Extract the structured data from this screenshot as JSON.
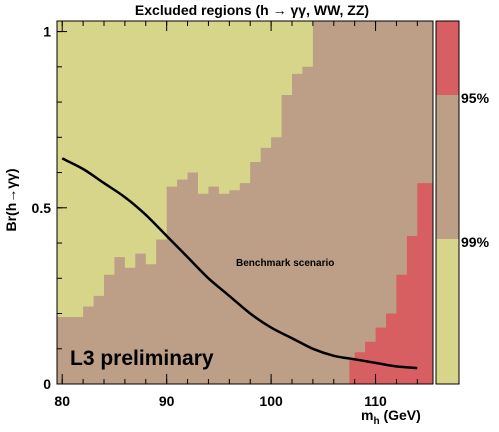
{
  "colors": {
    "excluded_95": "#d75f62",
    "excluded_99": "#bd9e86",
    "allowed": "#d6d58a",
    "curve": "#000000"
  },
  "chart_data": {
    "type": "heatmap",
    "title": "Excluded regions (h → γγ, WW, ZZ)",
    "xlabel": "m",
    "xlabel_sub": "h",
    "xlabel_unit": " (GeV)",
    "ylabel": "Br(h→γγ)",
    "xlim": [
      79.5,
      115.5
    ],
    "ylim": [
      0,
      1.03
    ],
    "x_ticks": [
      {
        "v": 80,
        "label": "80"
      },
      {
        "v": 90,
        "label": "90"
      },
      {
        "v": 100,
        "label": "100"
      },
      {
        "v": 110,
        "label": "110"
      }
    ],
    "y_ticks": [
      {
        "v": 0,
        "label": "0"
      },
      {
        "v": 0.5,
        "label": "0.5"
      },
      {
        "v": 1,
        "label": "1"
      }
    ],
    "grid": false,
    "legend": {
      "position": "right",
      "entries": [
        {
          "label": "95%",
          "color": "#d75f62"
        },
        {
          "label": "99%",
          "color": "#bd9e86"
        },
        {
          "label": "",
          "color": "#d6d58a"
        }
      ]
    },
    "regions": [
      {
        "name": "99% CL excluded",
        "color": "#bd9e86",
        "boundary": [
          [
            80,
            0.19
          ],
          [
            82,
            0.19
          ],
          [
            82,
            0.22
          ],
          [
            83,
            0.22
          ],
          [
            83,
            0.25
          ],
          [
            84,
            0.25
          ],
          [
            84,
            0.31
          ],
          [
            85,
            0.31
          ],
          [
            85,
            0.36
          ],
          [
            86,
            0.36
          ],
          [
            86,
            0.33
          ],
          [
            87,
            0.33
          ],
          [
            87,
            0.37
          ],
          [
            88,
            0.37
          ],
          [
            88,
            0.34
          ],
          [
            89,
            0.34
          ],
          [
            89,
            0.41
          ],
          [
            90,
            0.41
          ],
          [
            90,
            0.56
          ],
          [
            91,
            0.56
          ],
          [
            91,
            0.58
          ],
          [
            92,
            0.58
          ],
          [
            92,
            0.6
          ],
          [
            93,
            0.6
          ],
          [
            93,
            0.54
          ],
          [
            94,
            0.54
          ],
          [
            94,
            0.56
          ],
          [
            95,
            0.56
          ],
          [
            95,
            0.54
          ],
          [
            96,
            0.54
          ],
          [
            96,
            0.55
          ],
          [
            97,
            0.55
          ],
          [
            97,
            0.57
          ],
          [
            98,
            0.57
          ],
          [
            98,
            0.63
          ],
          [
            99,
            0.63
          ],
          [
            99,
            0.67
          ],
          [
            100,
            0.67
          ],
          [
            100,
            0.7
          ],
          [
            101,
            0.7
          ],
          [
            101,
            0.82
          ],
          [
            102,
            0.82
          ],
          [
            102,
            0.88
          ],
          [
            103,
            0.88
          ],
          [
            103,
            0.9
          ],
          [
            104,
            0.9
          ],
          [
            104,
            1.03
          ],
          [
            115,
            1.03
          ],
          [
            115,
            0
          ],
          [
            80,
            0
          ]
        ]
      },
      {
        "name": "95% CL excluded",
        "color": "#d75f62",
        "boundary": [
          [
            107.5,
            0
          ],
          [
            107.5,
            0.07
          ],
          [
            108,
            0.07
          ],
          [
            108,
            0.09
          ],
          [
            109,
            0.09
          ],
          [
            109,
            0.12
          ],
          [
            110,
            0.12
          ],
          [
            110,
            0.16
          ],
          [
            111,
            0.16
          ],
          [
            111,
            0.2
          ],
          [
            112,
            0.2
          ],
          [
            112,
            0.31
          ],
          [
            113,
            0.31
          ],
          [
            113,
            0.42
          ],
          [
            114,
            0.42
          ],
          [
            114,
            0.57
          ],
          [
            115,
            0.57
          ],
          [
            115,
            0
          ]
        ]
      }
    ],
    "series": [
      {
        "name": "Benchmark scenario",
        "x": [
          80,
          82,
          84,
          86,
          88,
          90,
          92,
          94,
          96,
          98,
          100,
          102,
          104,
          106,
          108,
          110,
          112,
          114
        ],
        "y": [
          0.64,
          0.61,
          0.57,
          0.53,
          0.48,
          0.42,
          0.36,
          0.3,
          0.25,
          0.2,
          0.16,
          0.13,
          0.1,
          0.08,
          0.07,
          0.06,
          0.05,
          0.045
        ]
      }
    ],
    "annotations": [
      {
        "text": "L3 preliminary",
        "x": 82.3,
        "y": 0.06
      },
      {
        "text": "Benchmark scenario",
        "x": 96.8,
        "y": 0.34
      }
    ]
  }
}
